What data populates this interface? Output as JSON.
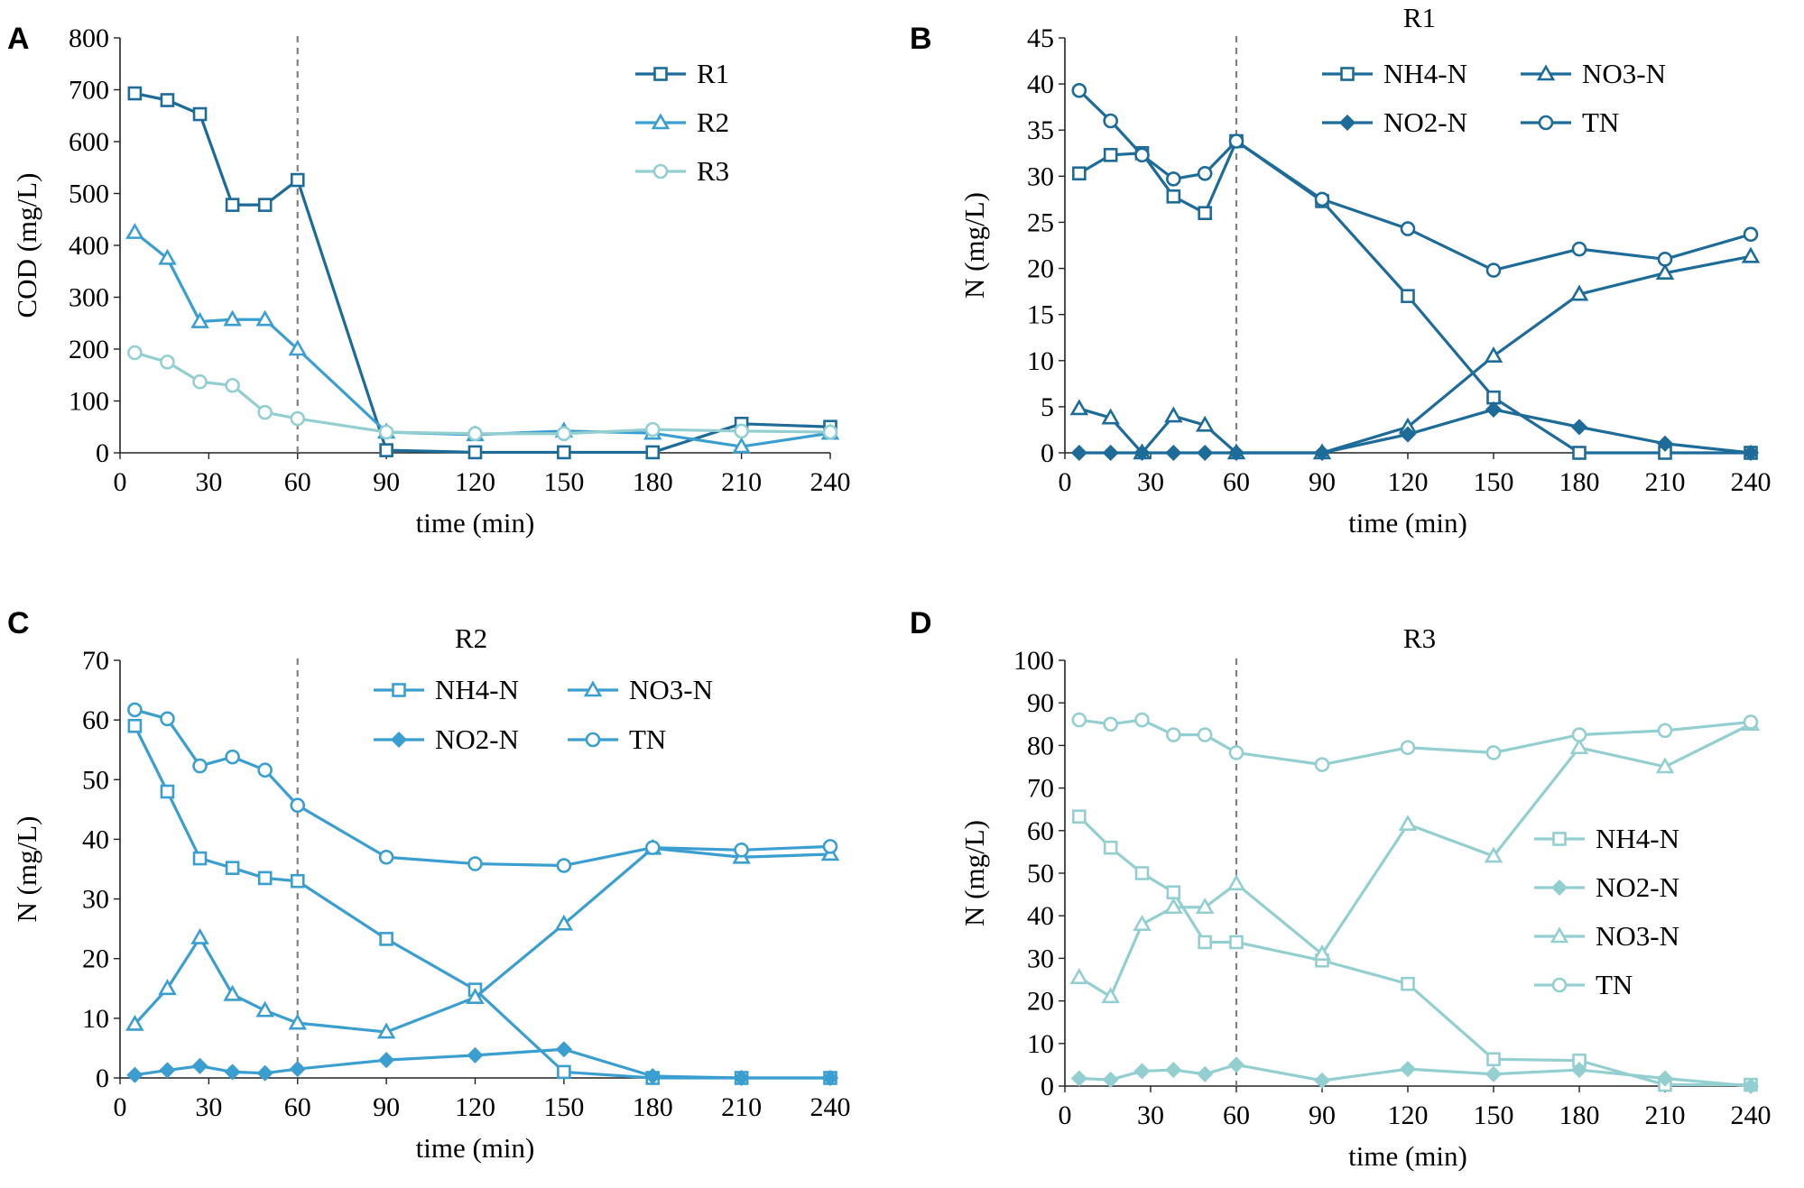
{
  "colors": {
    "r1": "#1c6b99",
    "r2": "#3a9fd0",
    "r3": "#93cfd0",
    "axis": "#222222",
    "marker_line": "#808080"
  },
  "chart_data": [
    {
      "panel": "A",
      "type": "line",
      "title": "",
      "xlabel": "time (min)",
      "ylabel": "COD (mg/L)",
      "xlim": [
        0,
        240
      ],
      "ylim": [
        0,
        800
      ],
      "xticks": [
        0,
        30,
        60,
        90,
        120,
        150,
        180,
        210,
        240
      ],
      "yticks": [
        0,
        100,
        200,
        300,
        400,
        500,
        600,
        700,
        800
      ],
      "vline_x": 60,
      "legend_position": "top-right",
      "legend_columns": 1,
      "x": [
        5,
        16,
        27,
        38,
        49,
        60,
        90,
        120,
        150,
        180,
        210,
        240
      ],
      "series": [
        {
          "name": "R1",
          "marker": "square",
          "color": "#1c6b99",
          "values": [
            693,
            680,
            653,
            478,
            478,
            526,
            5,
            1,
            1,
            1,
            56,
            50
          ]
        },
        {
          "name": "R2",
          "marker": "triangle",
          "color": "#3a9fd0",
          "values": [
            425,
            375,
            253,
            257,
            257,
            200,
            40,
            35,
            42,
            38,
            12,
            38
          ]
        },
        {
          "name": "R3",
          "marker": "circle",
          "color": "#93cfd0",
          "values": [
            193,
            175,
            137,
            130,
            78,
            66,
            40,
            37,
            37,
            45,
            42,
            40
          ]
        }
      ]
    },
    {
      "panel": "B",
      "type": "line",
      "title": "R1",
      "xlabel": "time (min)",
      "ylabel": "N (mg/L)",
      "xlim": [
        0,
        240
      ],
      "ylim": [
        0,
        45
      ],
      "xticks": [
        0,
        30,
        60,
        90,
        120,
        150,
        180,
        210,
        240
      ],
      "yticks": [
        0,
        5,
        10,
        15,
        20,
        25,
        30,
        35,
        40,
        45
      ],
      "vline_x": 60,
      "legend_position": "top-right",
      "legend_columns": 2,
      "x": [
        5,
        16,
        27,
        38,
        49,
        60,
        90,
        120,
        150,
        180,
        210,
        240
      ],
      "series": [
        {
          "name": "NH4-N",
          "marker": "square",
          "color": "#1c6b99",
          "values": [
            30.3,
            32.3,
            32.5,
            27.8,
            26.0,
            33.8,
            27.3,
            17.0,
            6.0,
            0,
            0,
            0
          ]
        },
        {
          "name": "NO3-N",
          "marker": "triangle",
          "color": "#1c6b99",
          "values": [
            4.8,
            3.8,
            0,
            4.0,
            3.0,
            0,
            0,
            2.8,
            10.5,
            17.2,
            19.5,
            21.3
          ]
        },
        {
          "name": "NO2-N",
          "marker": "diamond",
          "color": "#1c6b99",
          "values": [
            0,
            0,
            0,
            0,
            0,
            0,
            0,
            2.0,
            4.7,
            2.8,
            1.0,
            0
          ]
        },
        {
          "name": "TN",
          "marker": "circle",
          "color": "#1c6b99",
          "values": [
            39.3,
            36.0,
            32.3,
            29.7,
            30.3,
            33.8,
            27.5,
            24.3,
            19.8,
            22.1,
            21.0,
            23.7
          ]
        }
      ]
    },
    {
      "panel": "C",
      "type": "line",
      "title": "R2",
      "xlabel": "time (min)",
      "ylabel": "N (mg/L)",
      "xlim": [
        0,
        240
      ],
      "ylim": [
        0,
        70
      ],
      "xticks": [
        0,
        30,
        60,
        90,
        120,
        150,
        180,
        210,
        240
      ],
      "yticks": [
        0,
        10,
        20,
        30,
        40,
        50,
        60,
        70
      ],
      "vline_x": 60,
      "legend_position": "top-right",
      "legend_columns": 2,
      "x": [
        5,
        16,
        27,
        38,
        49,
        60,
        90,
        120,
        150,
        180,
        210,
        240
      ],
      "series": [
        {
          "name": "NH4-N",
          "marker": "square",
          "color": "#3a9fd0",
          "values": [
            59,
            48,
            36.8,
            35.2,
            33.5,
            33.0,
            23.3,
            14.8,
            1.0,
            0,
            0,
            0
          ]
        },
        {
          "name": "NO3-N",
          "marker": "triangle",
          "color": "#3a9fd0",
          "values": [
            9.0,
            15.0,
            23.5,
            14.0,
            11.3,
            9.2,
            7.7,
            13.5,
            25.8,
            38.5,
            37.0,
            37.5
          ]
        },
        {
          "name": "NO2-N",
          "marker": "diamond",
          "color": "#3a9fd0",
          "values": [
            0.5,
            1.3,
            2.0,
            1.0,
            0.8,
            1.5,
            3.0,
            3.8,
            4.8,
            0.3,
            0,
            0
          ]
        },
        {
          "name": "TN",
          "marker": "circle",
          "color": "#3a9fd0",
          "values": [
            61.7,
            60.2,
            52.3,
            53.8,
            51.6,
            45.7,
            37.0,
            35.9,
            35.6,
            38.6,
            38.2,
            38.8
          ]
        }
      ]
    },
    {
      "panel": "D",
      "type": "line",
      "title": "R3",
      "xlabel": "time (min)",
      "ylabel": "N (mg/L)",
      "xlim": [
        0,
        240
      ],
      "ylim": [
        0,
        100
      ],
      "xticks": [
        0,
        30,
        60,
        90,
        120,
        150,
        180,
        210,
        240
      ],
      "yticks": [
        0,
        10,
        20,
        30,
        40,
        50,
        60,
        70,
        80,
        90,
        100
      ],
      "vline_x": 60,
      "legend_position": "right",
      "legend_columns": 1,
      "x": [
        5,
        16,
        27,
        38,
        49,
        60,
        90,
        120,
        150,
        180,
        210,
        240
      ],
      "series": [
        {
          "name": "NH4-N",
          "marker": "square",
          "color": "#93cfd0",
          "values": [
            63.3,
            56.0,
            50.0,
            45.5,
            33.8,
            33.8,
            29.5,
            24.0,
            6.3,
            6.0,
            0.3,
            0.3
          ]
        },
        {
          "name": "NO2-N",
          "marker": "diamond",
          "color": "#93cfd0",
          "values": [
            1.8,
            1.5,
            3.5,
            3.8,
            2.8,
            5.0,
            1.3,
            4.0,
            2.8,
            3.8,
            1.8,
            0
          ]
        },
        {
          "name": "NO3-N",
          "marker": "triangle",
          "color": "#93cfd0",
          "values": [
            25.5,
            21.0,
            38.0,
            42.0,
            42.0,
            47.5,
            31.0,
            61.5,
            54.0,
            79.5,
            75.0,
            85.0
          ]
        },
        {
          "name": "TN",
          "marker": "circle",
          "color": "#93cfd0",
          "values": [
            86.0,
            85.0,
            86.0,
            82.5,
            82.5,
            78.3,
            75.5,
            79.5,
            78.3,
            82.5,
            83.5,
            85.5
          ]
        }
      ]
    }
  ]
}
